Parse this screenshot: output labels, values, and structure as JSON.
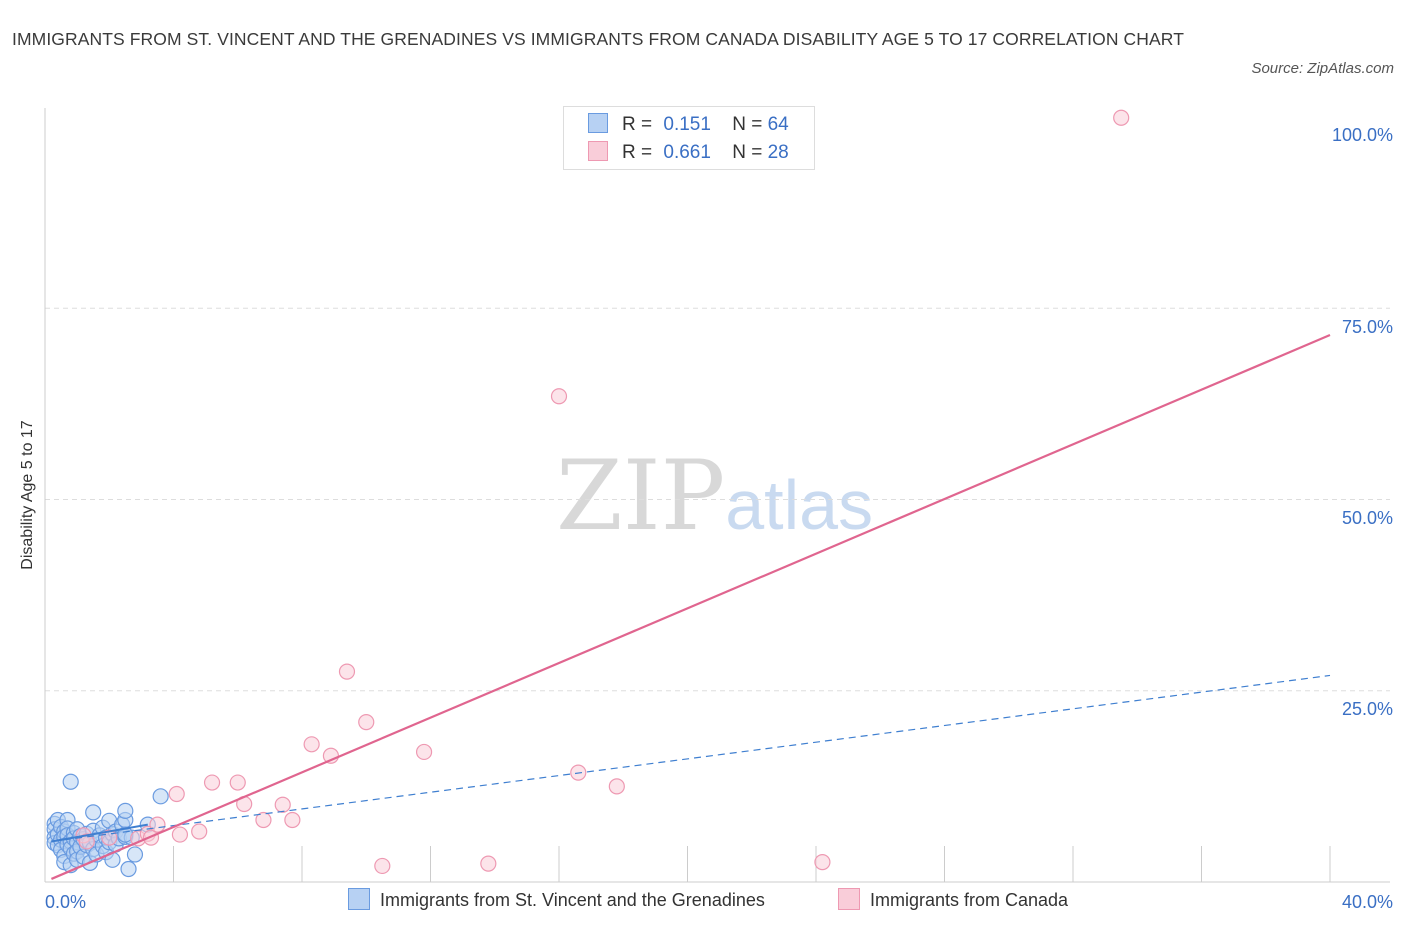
{
  "title": "IMMIGRANTS FROM ST. VINCENT AND THE GRENADINES VS IMMIGRANTS FROM CANADA DISABILITY AGE 5 TO 17 CORRELATION CHART",
  "source": "Source: ZipAtlas.com",
  "watermark": {
    "zip": "ZIP",
    "atlas": "atlas"
  },
  "legend": {
    "rows": [
      {
        "r_label": "R =",
        "r_value": "0.151",
        "n_label": "N =",
        "n_value": "64"
      },
      {
        "r_label": "R =",
        "r_value": "0.661",
        "n_label": "N =",
        "n_value": "28"
      }
    ]
  },
  "colors": {
    "blue_fill": "#b7d1f3",
    "blue_stroke": "#6a9be0",
    "blue_line": "#3f7fd0",
    "pink_fill": "#f9cdd9",
    "pink_stroke": "#ee99b2",
    "pink_line": "#e0658f",
    "axis_text": "#3a6fc4",
    "grid": "#dddddd"
  },
  "chart_data": {
    "type": "scatter",
    "title": "IMMIGRANTS FROM ST. VINCENT AND THE GRENADINES VS IMMIGRANTS FROM CANADA DISABILITY AGE 5 TO 17 CORRELATION CHART",
    "xlabel": "",
    "ylabel": "Disability Age 5 to 17",
    "xlim": [
      0,
      40
    ],
    "ylim": [
      0,
      100
    ],
    "x_tick_labels": [
      "0.0%",
      "40.0%"
    ],
    "y_tick_labels": [
      "25.0%",
      "50.0%",
      "75.0%",
      "100.0%"
    ],
    "y_ticks": [
      25,
      50,
      75,
      100
    ],
    "grid": true,
    "legend_position": "bottom",
    "series": [
      {
        "name": "Immigrants from St. Vincent and the Grenadines",
        "color": "blue",
        "trend": {
          "x": [
            0.2,
            40
          ],
          "y": [
            5.3,
            27
          ],
          "style": "dashed"
        },
        "trend_solid": {
          "x": [
            0.2,
            3.2
          ],
          "y": [
            5.3,
            7.5
          ]
        },
        "points": [
          [
            0.3,
            7.6
          ],
          [
            0.3,
            6.9
          ],
          [
            0.3,
            5.8
          ],
          [
            0.3,
            5.1
          ],
          [
            0.4,
            8.1
          ],
          [
            0.4,
            6.2
          ],
          [
            0.4,
            4.8
          ],
          [
            0.5,
            7.2
          ],
          [
            0.5,
            5.5
          ],
          [
            0.5,
            4.2
          ],
          [
            0.6,
            6.6
          ],
          [
            0.6,
            5.9
          ],
          [
            0.6,
            3.4
          ],
          [
            0.6,
            2.6
          ],
          [
            0.7,
            8.1
          ],
          [
            0.7,
            7.0
          ],
          [
            0.7,
            6.1
          ],
          [
            0.7,
            4.9
          ],
          [
            0.8,
            13.1
          ],
          [
            0.8,
            5.3
          ],
          [
            0.8,
            4.4
          ],
          [
            0.8,
            2.2
          ],
          [
            0.9,
            6.4
          ],
          [
            0.9,
            5.7
          ],
          [
            0.9,
            3.7
          ],
          [
            1.0,
            6.9
          ],
          [
            1.0,
            5.2
          ],
          [
            1.0,
            4.0
          ],
          [
            1.0,
            2.9
          ],
          [
            1.1,
            6.0
          ],
          [
            1.1,
            4.6
          ],
          [
            1.2,
            5.6
          ],
          [
            1.2,
            3.3
          ],
          [
            1.3,
            6.3
          ],
          [
            1.3,
            4.8
          ],
          [
            1.4,
            5.1
          ],
          [
            1.4,
            2.5
          ],
          [
            1.5,
            9.1
          ],
          [
            1.5,
            6.7
          ],
          [
            1.5,
            4.3
          ],
          [
            1.6,
            5.5
          ],
          [
            1.6,
            3.6
          ],
          [
            1.7,
            6.1
          ],
          [
            1.8,
            7.1
          ],
          [
            1.8,
            4.7
          ],
          [
            1.9,
            5.8
          ],
          [
            1.9,
            3.9
          ],
          [
            2.0,
            8.0
          ],
          [
            2.0,
            5.2
          ],
          [
            2.1,
            6.3
          ],
          [
            2.1,
            2.9
          ],
          [
            2.2,
            6.6
          ],
          [
            2.2,
            4.9
          ],
          [
            2.3,
            5.7
          ],
          [
            2.4,
            7.5
          ],
          [
            2.5,
            8.1
          ],
          [
            2.5,
            5.9
          ],
          [
            2.6,
            1.7
          ],
          [
            2.7,
            5.8
          ],
          [
            2.8,
            3.6
          ],
          [
            2.5,
            6.2
          ],
          [
            2.5,
            9.3
          ],
          [
            3.2,
            7.5
          ],
          [
            3.6,
            11.2
          ]
        ]
      },
      {
        "name": "Immigrants from Canada",
        "color": "pink",
        "trend": {
          "x": [
            0.2,
            40
          ],
          "y": [
            0.4,
            71.5
          ],
          "style": "solid"
        },
        "points": [
          [
            1.2,
            6.1
          ],
          [
            1.3,
            5.3
          ],
          [
            2.0,
            5.8
          ],
          [
            2.9,
            5.7
          ],
          [
            3.2,
            6.3
          ],
          [
            3.3,
            5.8
          ],
          [
            3.5,
            7.5
          ],
          [
            4.1,
            11.5
          ],
          [
            4.2,
            6.2
          ],
          [
            4.8,
            6.6
          ],
          [
            5.2,
            13.0
          ],
          [
            6.0,
            13.0
          ],
          [
            6.2,
            10.2
          ],
          [
            6.8,
            8.1
          ],
          [
            7.4,
            10.1
          ],
          [
            7.7,
            8.1
          ],
          [
            8.3,
            18.0
          ],
          [
            8.9,
            16.5
          ],
          [
            9.4,
            27.5
          ],
          [
            10.0,
            20.9
          ],
          [
            10.5,
            2.1
          ],
          [
            11.8,
            17.0
          ],
          [
            13.8,
            2.4
          ],
          [
            16.0,
            63.5
          ],
          [
            16.6,
            14.3
          ],
          [
            17.8,
            12.5
          ],
          [
            24.2,
            2.6
          ],
          [
            33.5,
            99.9
          ]
        ]
      }
    ]
  }
}
